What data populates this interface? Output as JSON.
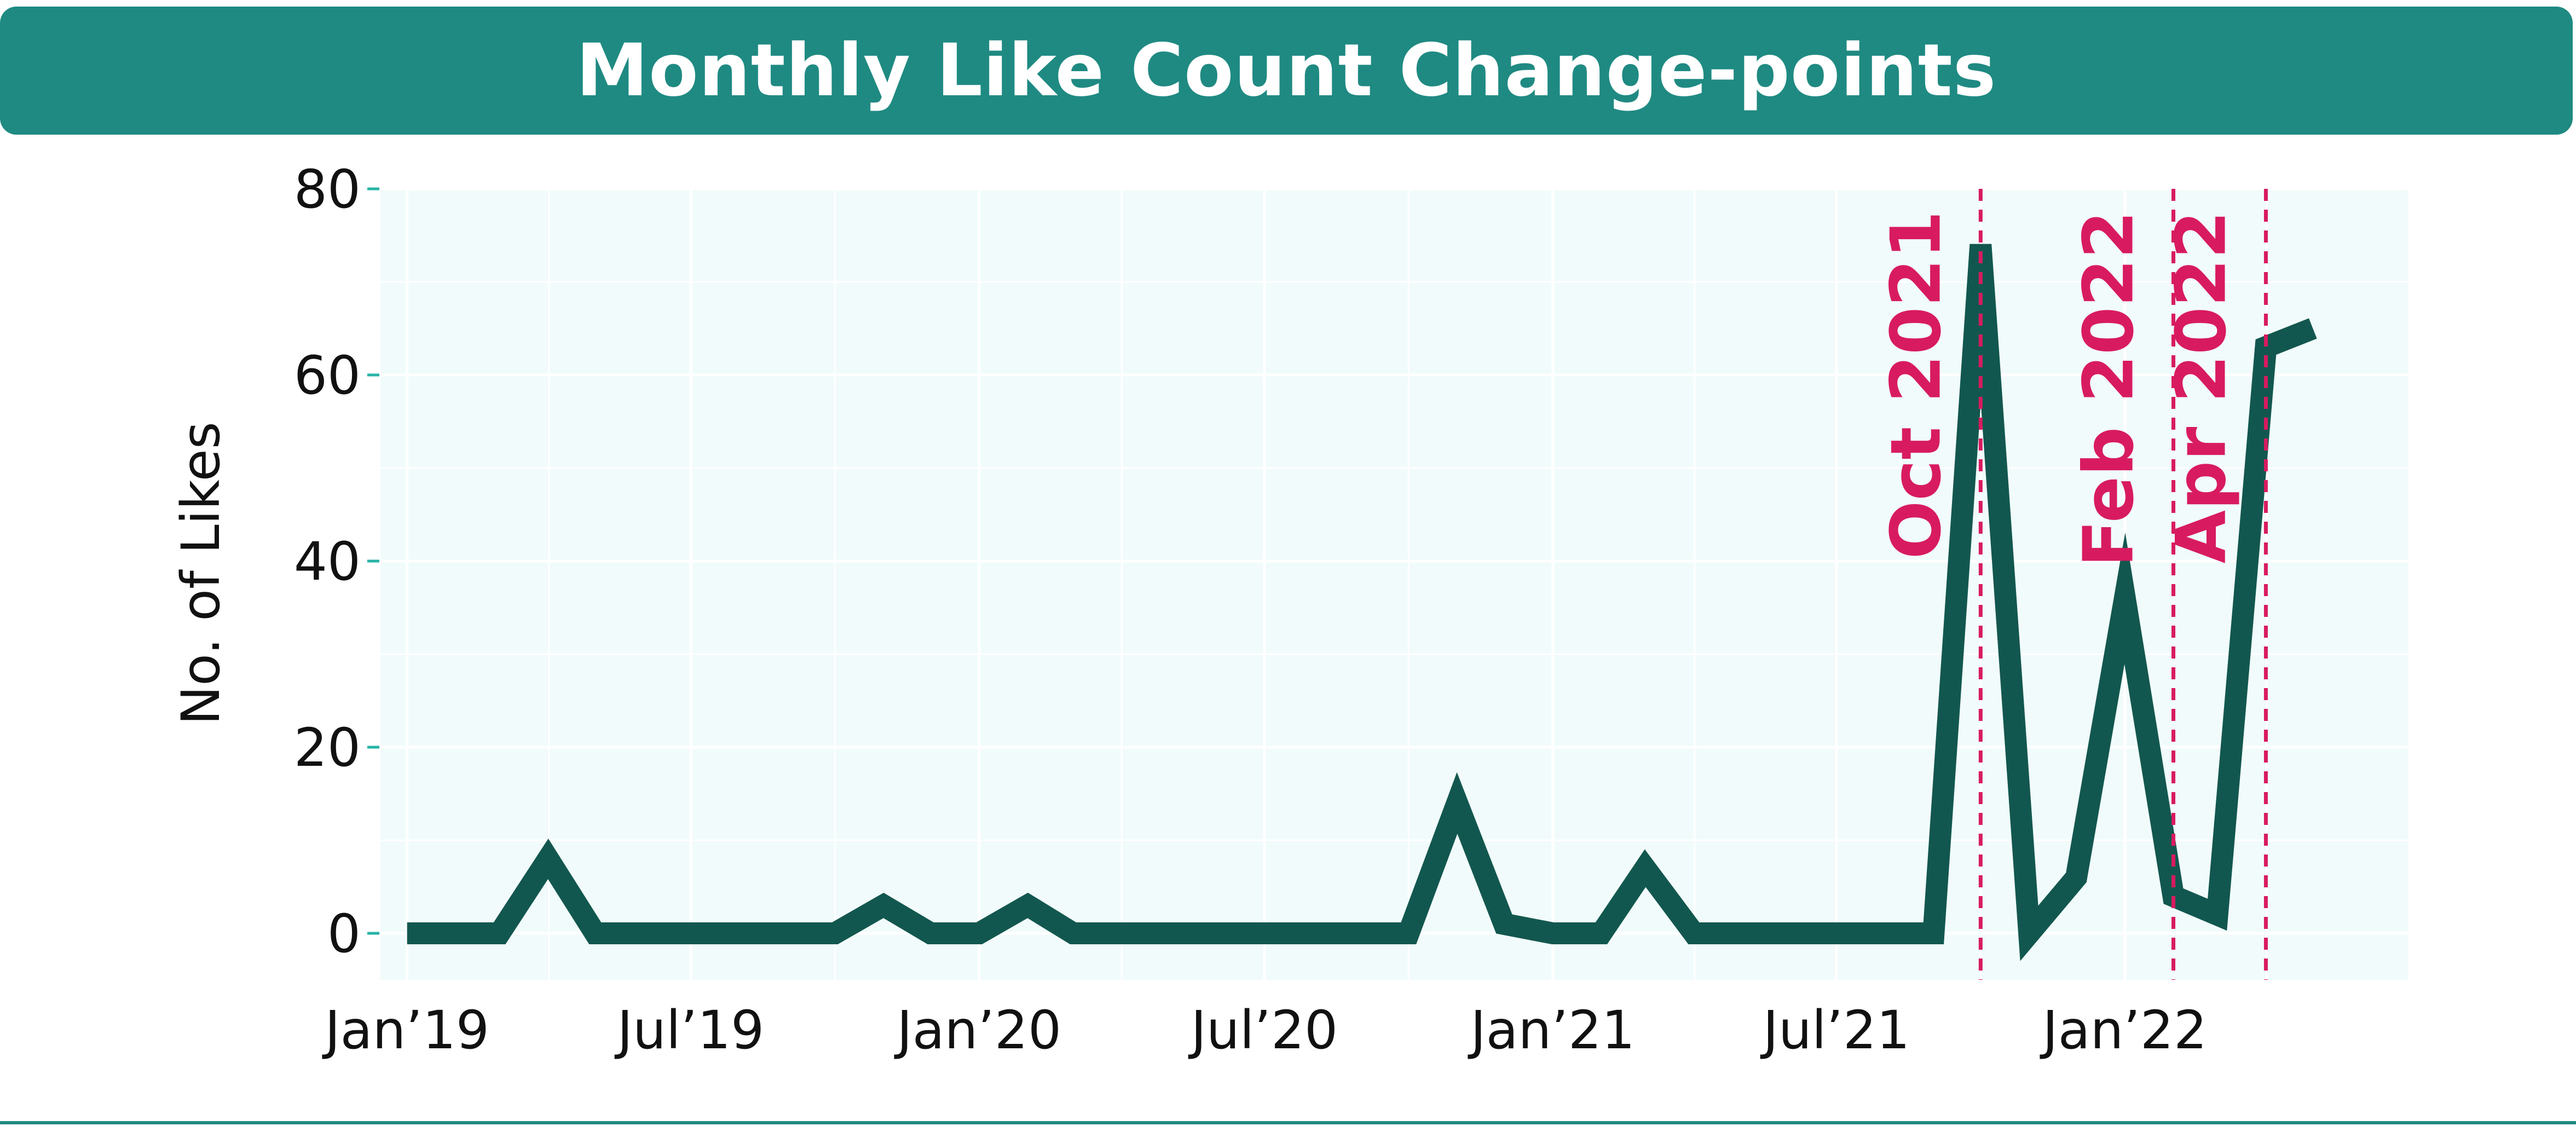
{
  "header": {
    "title": "Monthly Like Count Change-points"
  },
  "colors": {
    "header_bg": "#1f8a82",
    "plot_bg": "#f1fbfb",
    "grid": "#ffffff",
    "line": "#12574f",
    "tick_mark": "#27b3a6",
    "changepoint": "#d81b60",
    "bottom_rule": "#1f8a82"
  },
  "chart_data": {
    "type": "line",
    "title": "Monthly Like Count Change-points",
    "xlabel": "",
    "ylabel": "No. of Likes",
    "ylim": [
      -5,
      80
    ],
    "yticks": [
      0,
      20,
      40,
      60,
      80
    ],
    "xlim": [
      "2018-12-15",
      "2022-07-01"
    ],
    "xticks": [
      {
        "date": "2019-01-01",
        "label": "Jan’19"
      },
      {
        "date": "2019-07-01",
        "label": "Jul’19"
      },
      {
        "date": "2020-01-01",
        "label": "Jan’20"
      },
      {
        "date": "2020-07-01",
        "label": "Jul’20"
      },
      {
        "date": "2021-01-01",
        "label": "Jan’21"
      },
      {
        "date": "2021-07-01",
        "label": "Jul’21"
      },
      {
        "date": "2022-01-01",
        "label": "Jan’22"
      }
    ],
    "grid": true,
    "series": [
      {
        "x": [
          "2019-01-01",
          "2019-02-01",
          "2019-03-01",
          "2019-04-01",
          "2019-05-01",
          "2019-06-01",
          "2019-07-01",
          "2019-08-01",
          "2019-09-01",
          "2019-10-01",
          "2019-11-01",
          "2019-12-01",
          "2020-01-01",
          "2020-02-01",
          "2020-03-01",
          "2020-04-01",
          "2020-05-01",
          "2020-06-01",
          "2020-07-01",
          "2020-08-01",
          "2020-09-01",
          "2020-10-01",
          "2020-11-01",
          "2020-12-01",
          "2021-01-01",
          "2021-02-01",
          "2021-03-01",
          "2021-04-01",
          "2021-05-01",
          "2021-06-01",
          "2021-07-01",
          "2021-08-01",
          "2021-09-01",
          "2021-10-01",
          "2021-11-01",
          "2021-12-01",
          "2022-01-01",
          "2022-02-01",
          "2022-03-01",
          "2022-04-01",
          "2022-05-01"
        ],
        "y": [
          0,
          0,
          0,
          8,
          0,
          0,
          0,
          0,
          0,
          0,
          3,
          0,
          0,
          3,
          0,
          0,
          0,
          0,
          0,
          0,
          0,
          0,
          14,
          1,
          0,
          0,
          7,
          0,
          0,
          0,
          0,
          0,
          0,
          74,
          0,
          6,
          36,
          4,
          2,
          63,
          65
        ]
      }
    ],
    "changepoints": [
      {
        "date": "2021-10-01",
        "label": "Oct 2021"
      },
      {
        "date": "2022-02-01",
        "label": "Feb 2022"
      },
      {
        "date": "2022-04-01",
        "label": "Apr 2022"
      }
    ]
  }
}
